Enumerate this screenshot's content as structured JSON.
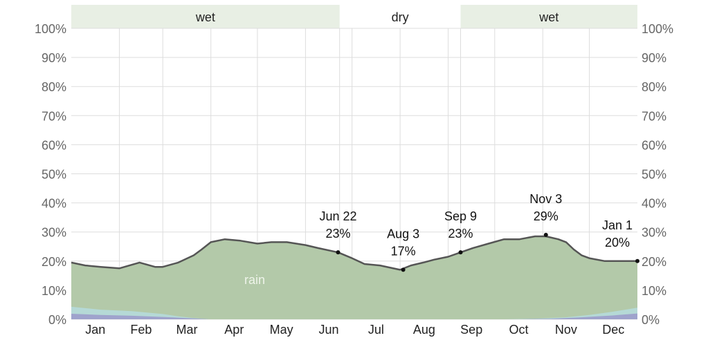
{
  "chart_data": {
    "type": "area",
    "ylim": [
      0,
      100
    ],
    "y_ticks": [
      "0%",
      "10%",
      "20%",
      "30%",
      "40%",
      "50%",
      "60%",
      "70%",
      "80%",
      "90%",
      "100%"
    ],
    "y_tick_values": [
      0,
      10,
      20,
      30,
      40,
      50,
      60,
      70,
      80,
      90,
      100
    ],
    "x_range_days": [
      1,
      366
    ],
    "months": [
      {
        "label": "Jan",
        "start_day": 1,
        "end_day": 32
      },
      {
        "label": "Feb",
        "start_day": 32,
        "end_day": 60
      },
      {
        "label": "Mar",
        "start_day": 60,
        "end_day": 91
      },
      {
        "label": "Apr",
        "start_day": 91,
        "end_day": 121
      },
      {
        "label": "May",
        "start_day": 121,
        "end_day": 152
      },
      {
        "label": "Jun",
        "start_day": 152,
        "end_day": 182
      },
      {
        "label": "Jul",
        "start_day": 182,
        "end_day": 213
      },
      {
        "label": "Aug",
        "start_day": 213,
        "end_day": 244
      },
      {
        "label": "Sep",
        "start_day": 244,
        "end_day": 274
      },
      {
        "label": "Oct",
        "start_day": 274,
        "end_day": 305
      },
      {
        "label": "Nov",
        "start_day": 305,
        "end_day": 335
      },
      {
        "label": "Dec",
        "start_day": 335,
        "end_day": 366
      }
    ],
    "seasons": [
      {
        "label": "wet",
        "start_day": 1,
        "end_day": 174,
        "shaded": true
      },
      {
        "label": "dry",
        "start_day": 174,
        "end_day": 252,
        "shaded": false
      },
      {
        "label": "wet",
        "start_day": 252,
        "end_day": 366,
        "shaded": true
      }
    ],
    "series": [
      {
        "name": "rain",
        "color": "#b3c9a9",
        "x": [
          1,
          10,
          20,
          32,
          45,
          55,
          60,
          70,
          80,
          85,
          91,
          100,
          110,
          121,
          130,
          140,
          152,
          160,
          173,
          182,
          190,
          200,
          213,
          220,
          228,
          235,
          244,
          252,
          260,
          270,
          280,
          290,
          300,
          307,
          315,
          320,
          325,
          330,
          335,
          345,
          355,
          366
        ],
        "values": [
          19.5,
          18.5,
          18,
          17.5,
          19.5,
          18,
          18,
          19.5,
          22,
          24,
          26.5,
          27.5,
          27,
          26,
          26.5,
          26.5,
          25.5,
          24.5,
          23,
          21,
          19,
          18.5,
          17,
          18.5,
          19.5,
          20.5,
          21.5,
          23,
          24.5,
          26,
          27.5,
          27.5,
          28.5,
          28.5,
          27.5,
          26.5,
          24,
          22,
          21,
          20,
          20,
          20
        ]
      },
      {
        "name": "",
        "color": "#b5d9d6",
        "x": [
          1,
          20,
          40,
          60,
          70,
          80,
          90,
          280,
          300,
          320,
          335,
          350,
          366
        ],
        "values": [
          4.3,
          3.3,
          2.8,
          1.8,
          1.0,
          0.4,
          0,
          0,
          0.2,
          0.7,
          1.5,
          2.6,
          4.0
        ]
      },
      {
        "name": "",
        "color": "#9fa3cc",
        "x": [
          1,
          20,
          40,
          60,
          80,
          90,
          290,
          310,
          330,
          350,
          366
        ],
        "values": [
          1.9,
          1.5,
          1.2,
          0.8,
          0.3,
          0,
          0,
          0.2,
          0.7,
          1.3,
          2.0
        ]
      }
    ],
    "annotations": [
      {
        "date": "Jun 22",
        "value_label": "23%",
        "day": 173,
        "value": 23
      },
      {
        "date": "Aug 3",
        "value_label": "17%",
        "day": 215,
        "value": 17
      },
      {
        "date": "Sep 9",
        "value_label": "23%",
        "day": 252,
        "value": 23
      },
      {
        "date": "Nov 3",
        "value_label": "29%",
        "day": 307,
        "value": 29
      },
      {
        "date": "Jan 1",
        "value_label": "20%",
        "day": 366,
        "value": 20
      }
    ],
    "grid": true,
    "colors": {
      "wet_band": "#e8efe4",
      "line": "#555555",
      "grid": "#dddddd"
    }
  }
}
